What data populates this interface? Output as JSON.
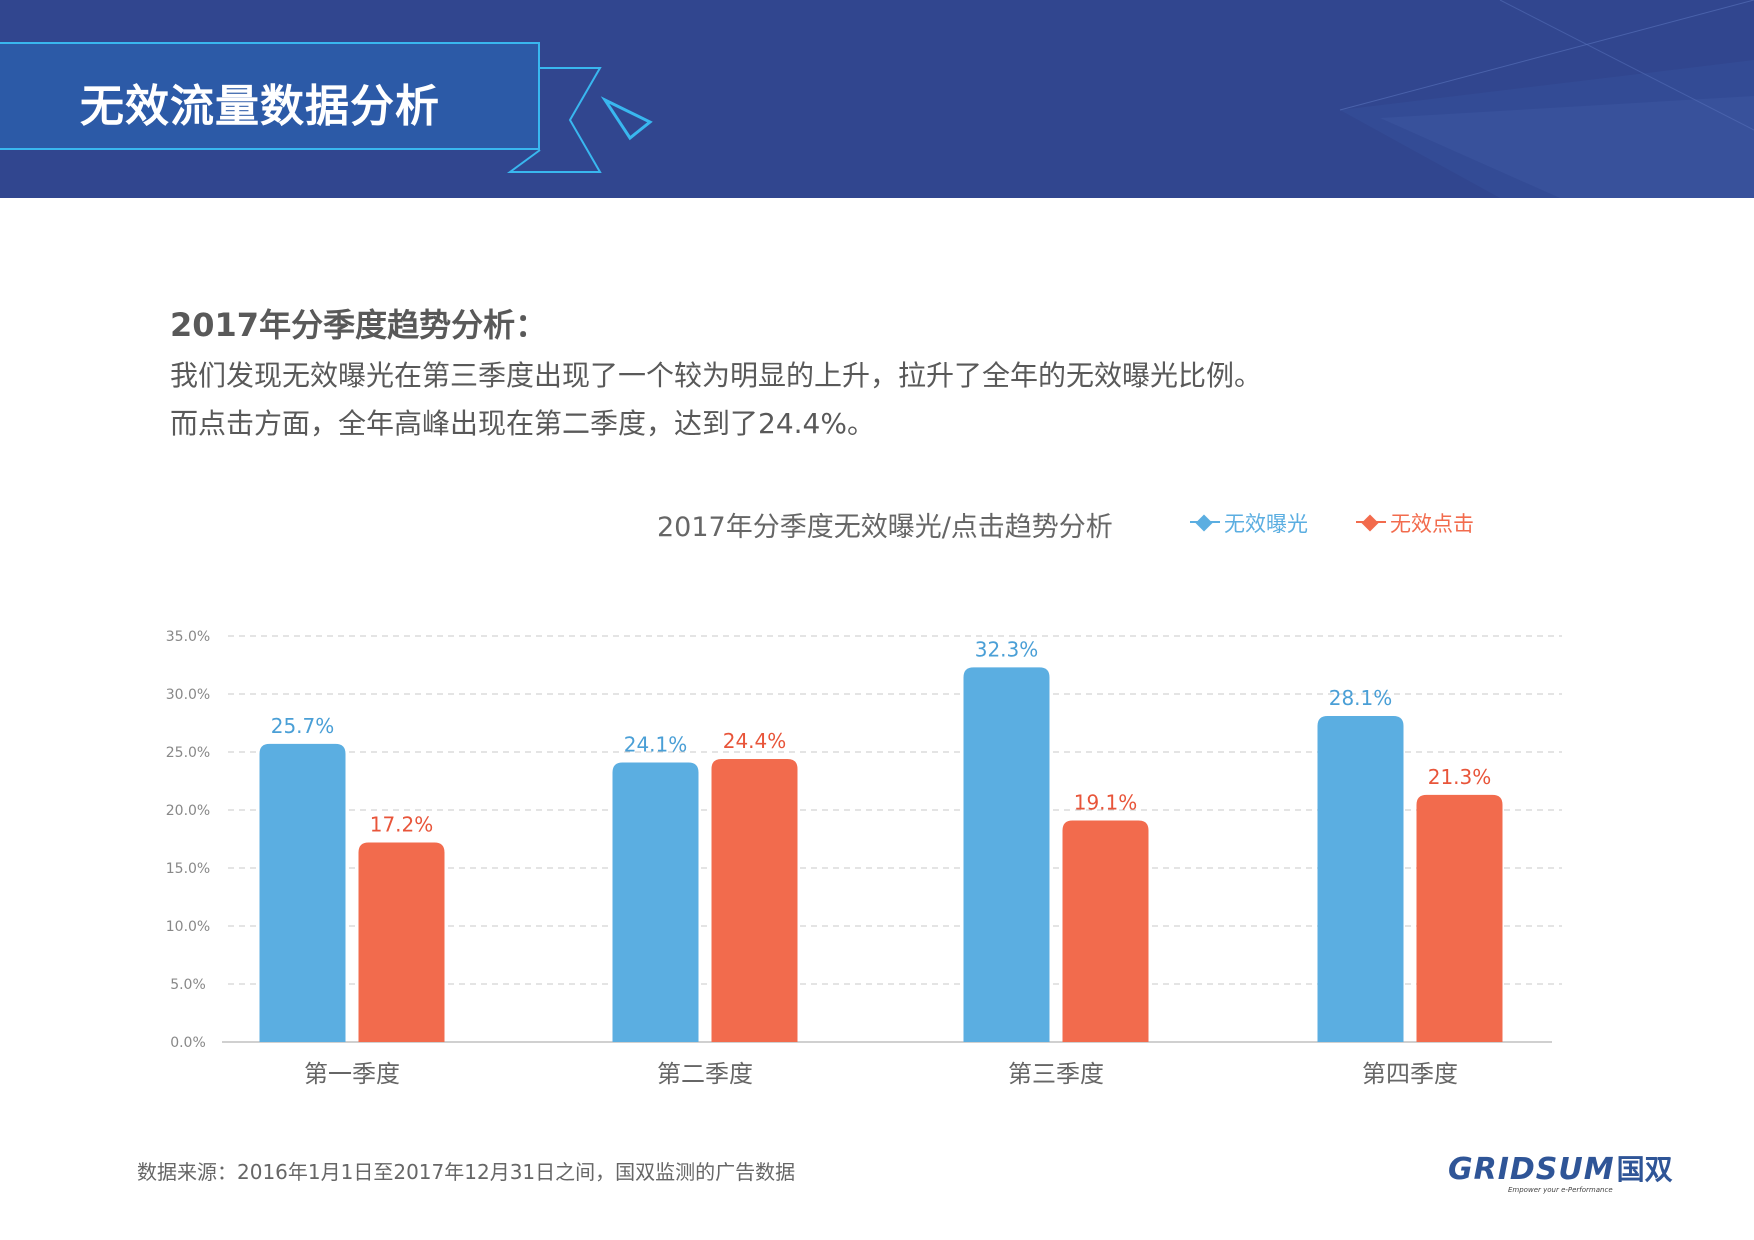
{
  "header": {
    "title": "无效流量数据分析"
  },
  "intro": {
    "heading": "2017年分季度趋势分析：",
    "lines": [
      "我们发现无效曝光在第三季度出现了一个较为明显的上升，拉升了全年的无效曝光比例。",
      "而点击方面，全年高峰出现在第二季度，达到了24.4%。"
    ]
  },
  "chart_data": {
    "type": "bar",
    "title": "2017年分季度无效曝光/点击趋势分析",
    "categories": [
      "第一季度",
      "第二季度",
      "第三季度",
      "第四季度"
    ],
    "series": [
      {
        "name": "无效曝光",
        "values": [
          25.7,
          24.1,
          32.3,
          28.1
        ],
        "labels": [
          "25.7%",
          "24.1%",
          "32.3%",
          "28.1%"
        ],
        "color": "#5baee1"
      },
      {
        "name": "无效点击",
        "values": [
          17.2,
          24.4,
          19.1,
          21.3
        ],
        "labels": [
          "17.2%",
          "24.4%",
          "19.1%",
          "21.3%"
        ],
        "color": "#f26b4d"
      }
    ],
    "y_ticks": [
      "0.0%",
      "5.0%",
      "10.0%",
      "15.0%",
      "20.0%",
      "25.0%",
      "30.0%",
      "35.0%"
    ],
    "ylim": [
      0,
      35
    ],
    "grid": true,
    "legend_position": "top-right"
  },
  "footer": {
    "source": "数据来源：2016年1月1日至2017年12月31日之间，国双监测的广告数据",
    "logo_text": "GRIDSUM",
    "logo_cn": "国双",
    "logo_tagline": "Empower your e-Performance"
  },
  "colors": {
    "header_bg": "#31468f",
    "banner_bg": "#2c5aa7",
    "banner_border": "#39b7ef"
  }
}
